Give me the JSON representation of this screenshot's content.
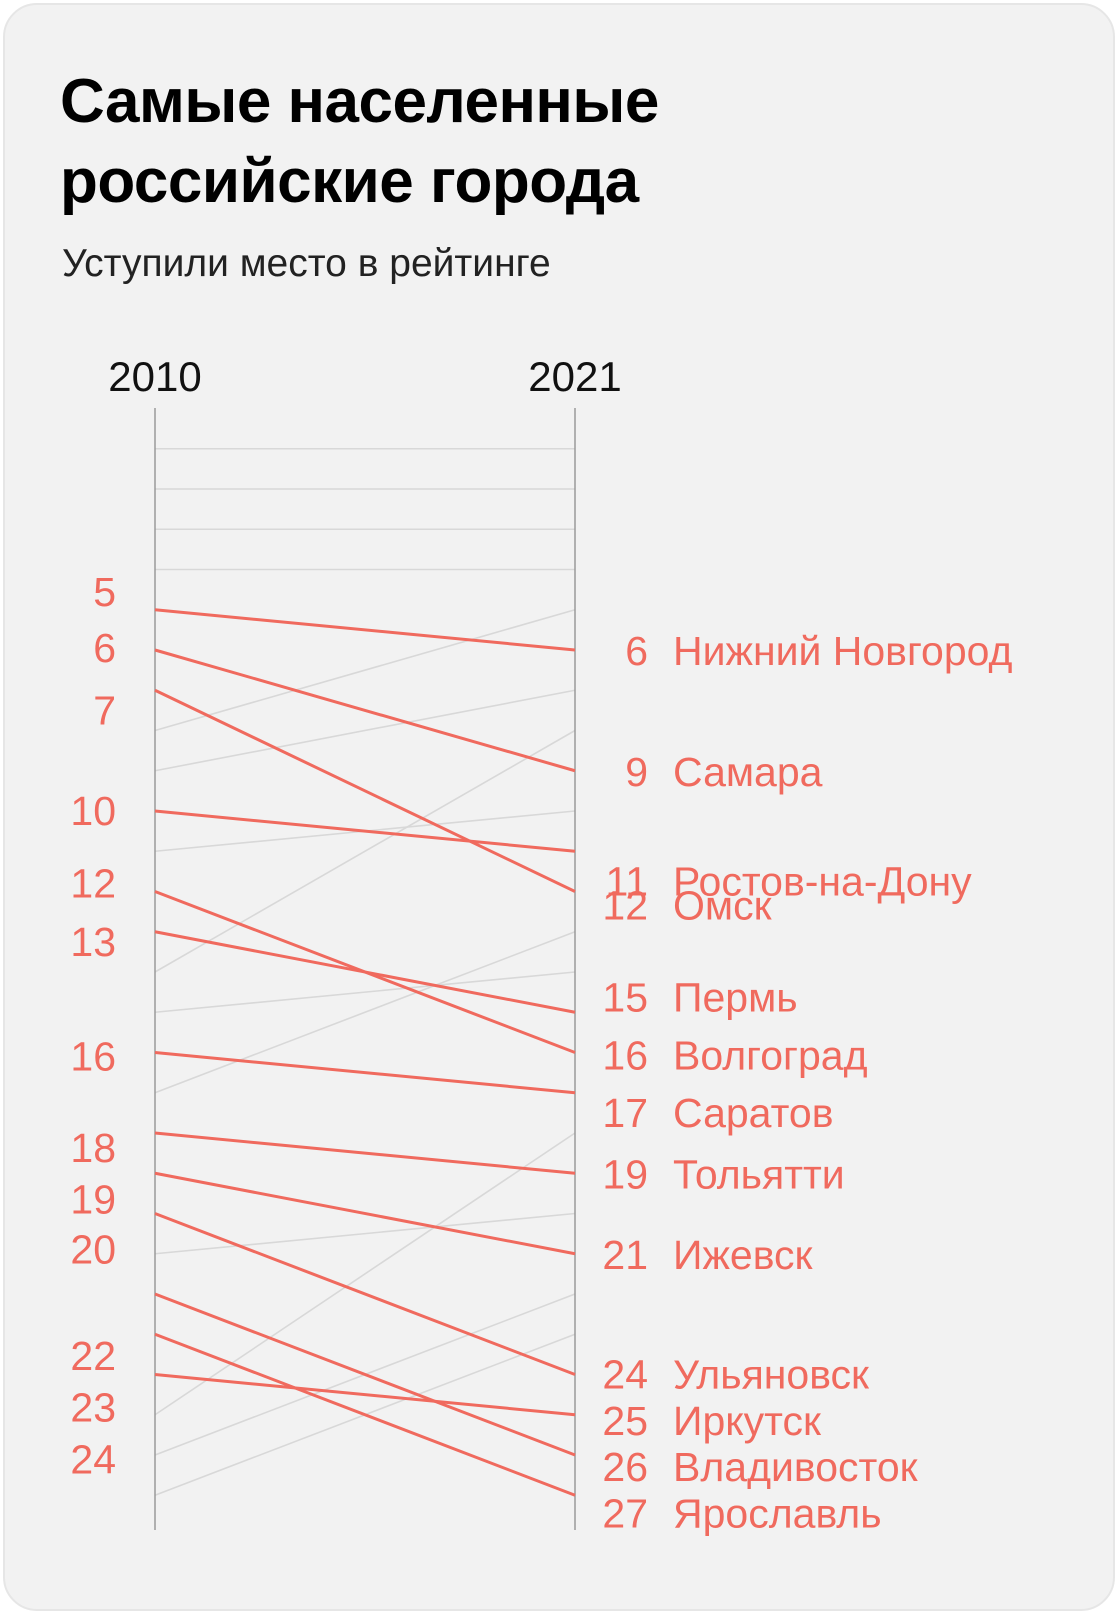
{
  "title": "Самые населенные российские города",
  "subtitle": "Уступили место в рейтинге",
  "colors": {
    "accent": "#f06a5e",
    "gray_line": "#d8d8d8",
    "axis": "#999999",
    "background": "#f2f2f2",
    "text": "#000000"
  },
  "chart_data": {
    "type": "slope",
    "x_labels": [
      "2010",
      "2021"
    ],
    "rank_range": [
      1,
      28
    ],
    "series": [
      {
        "name": "Нижний Новгород",
        "y2010": 5,
        "y2021": 6
      },
      {
        "name": "Самара",
        "y2010": 6,
        "y2021": 9
      },
      {
        "name": "Омск",
        "y2010": 7,
        "y2021": 12
      },
      {
        "name": "Ростов-на-Дону",
        "y2010": 10,
        "y2021": 11
      },
      {
        "name": "Волгоград",
        "y2010": 12,
        "y2021": 16
      },
      {
        "name": "Пермь",
        "y2010": 13,
        "y2021": 15
      },
      {
        "name": "Саратов",
        "y2010": 16,
        "y2021": 17
      },
      {
        "name": "Тольятти",
        "y2010": 18,
        "y2021": 19
      },
      {
        "name": "Ижевск",
        "y2010": 19,
        "y2021": 21
      },
      {
        "name": "Ульяновск",
        "y2010": 20,
        "y2021": 24
      },
      {
        "name": "Владивосток",
        "y2010": 22,
        "y2021": 26
      },
      {
        "name": "Ярославль",
        "y2010": 23,
        "y2021": 27
      },
      {
        "name": "Иркутск",
        "y2010": 24,
        "y2021": 25
      }
    ],
    "other_lines": [
      {
        "y2010": 1,
        "y2021": 1
      },
      {
        "y2010": 2,
        "y2021": 2
      },
      {
        "y2010": 3,
        "y2021": 3
      },
      {
        "y2010": 4,
        "y2021": 4
      },
      {
        "y2010": 8,
        "y2021": 5
      },
      {
        "y2010": 9,
        "y2021": 7
      },
      {
        "y2010": 11,
        "y2021": 10
      },
      {
        "y2010": 14,
        "y2021": 8
      },
      {
        "y2010": 15,
        "y2021": 14
      },
      {
        "y2010": 17,
        "y2021": 13
      },
      {
        "y2010": 21,
        "y2021": 20
      },
      {
        "y2010": 25,
        "y2021": 18
      },
      {
        "y2010": 26,
        "y2021": 22
      },
      {
        "y2010": 27,
        "y2021": 23
      }
    ]
  }
}
